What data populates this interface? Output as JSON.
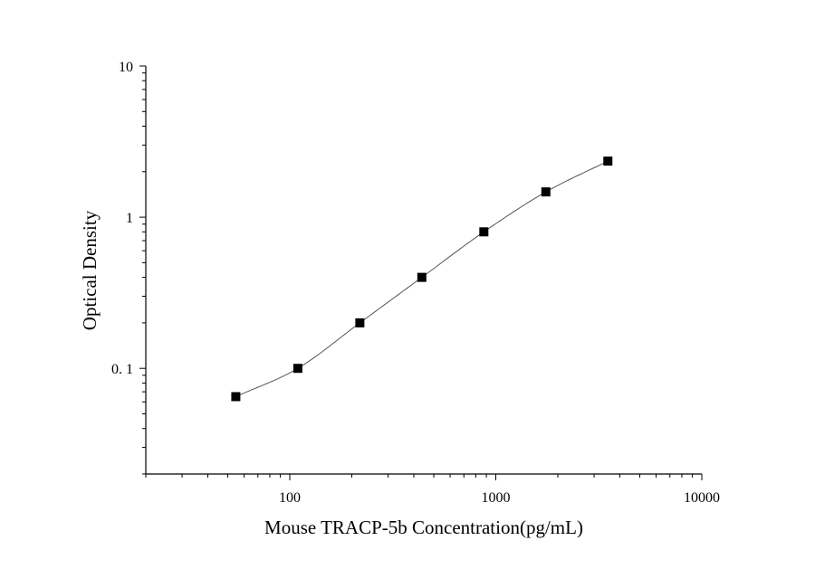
{
  "chart_data": {
    "type": "scatter",
    "title": "",
    "xlabel": "Mouse TRACP-5b Concentration(pg/mL)",
    "ylabel": "Optical Density",
    "x_scale": "log",
    "y_scale": "log",
    "xlim": [
      20,
      10000
    ],
    "ylim": [
      0.02,
      10
    ],
    "x_tick_labels": [
      "100",
      "1000",
      "10000"
    ],
    "y_tick_labels": [
      "10",
      "1",
      "0. 1"
    ],
    "grid": false,
    "legend": "none",
    "series": [
      {
        "x": [
          54.7,
          109.4,
          218.8,
          437.5,
          875,
          1750,
          3500
        ],
        "y": [
          0.065,
          0.1,
          0.2,
          0.4,
          0.8,
          1.47,
          2.35
        ]
      }
    ],
    "colors": {
      "marker": "#000000",
      "curve": "#555555",
      "axis": "#000000"
    }
  }
}
